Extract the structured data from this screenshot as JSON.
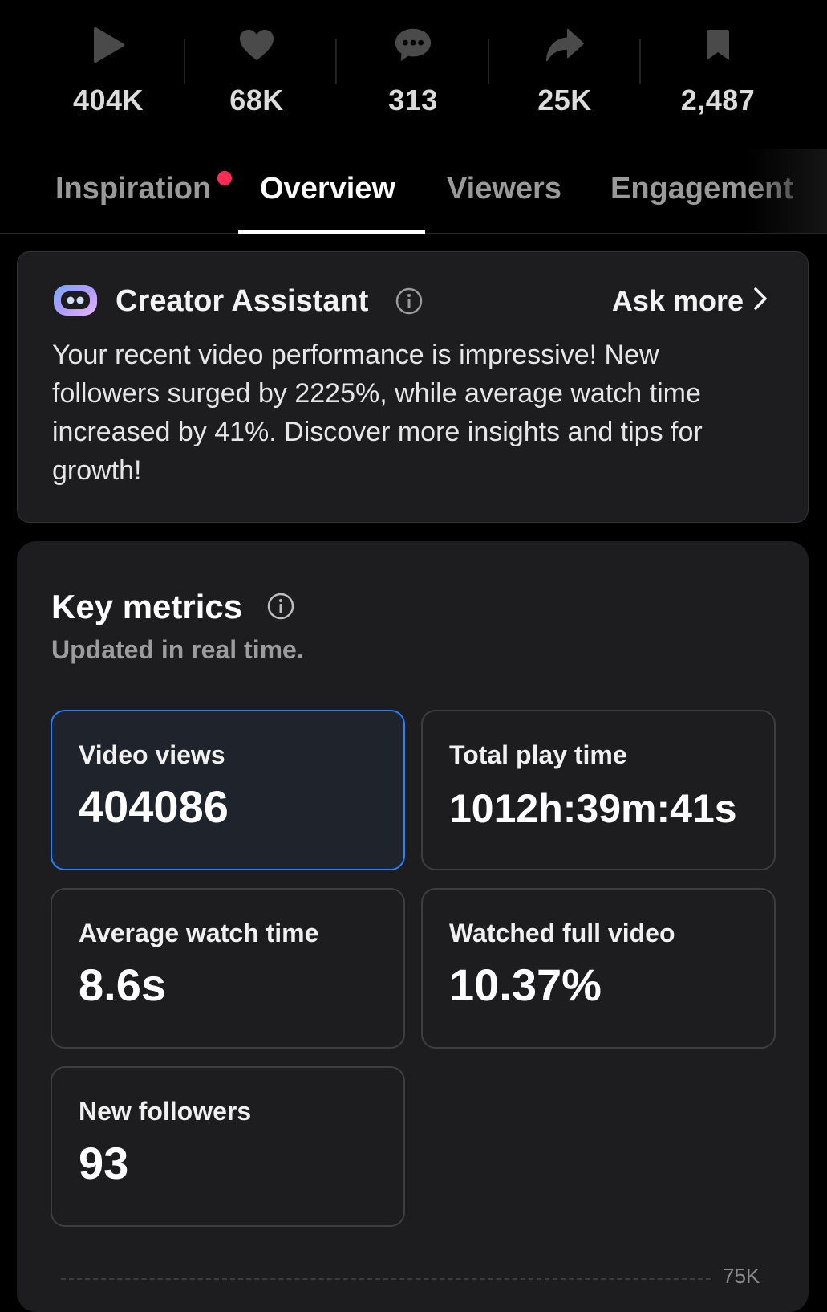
{
  "stats": [
    {
      "icon": "play-icon",
      "value": "404K"
    },
    {
      "icon": "heart-icon",
      "value": "68K"
    },
    {
      "icon": "comment-icon",
      "value": "313"
    },
    {
      "icon": "share-icon",
      "value": "25K"
    },
    {
      "icon": "bookmark-icon",
      "value": "2,487"
    }
  ],
  "tabs": [
    {
      "label": "Inspiration",
      "has_dot": true
    },
    {
      "label": "Overview",
      "active": true
    },
    {
      "label": "Viewers"
    },
    {
      "label": "Engagement"
    }
  ],
  "assistant": {
    "title": "Creator Assistant",
    "ask_more": "Ask more",
    "message": "Your recent video performance is impressive! New followers surged by 2225%, while average watch time increased by 41%. Discover more insights and tips for growth!"
  },
  "metrics": {
    "title": "Key metrics",
    "subtitle": "Updated in real time.",
    "cards": [
      {
        "label": "Video views",
        "value": "404086",
        "selected": true
      },
      {
        "label": "Total play time",
        "value": "1012h:39m:41s"
      },
      {
        "label": "Average watch time",
        "value": "8.6s"
      },
      {
        "label": "Watched full video",
        "value": "10.37%"
      },
      {
        "label": "New followers",
        "value": "93"
      }
    ],
    "chart_tick": "75K"
  },
  "colors": {
    "accent_dot": "#fe2c55",
    "selected_border": "#2a7fff",
    "card_bg": "#1d1d1f"
  }
}
